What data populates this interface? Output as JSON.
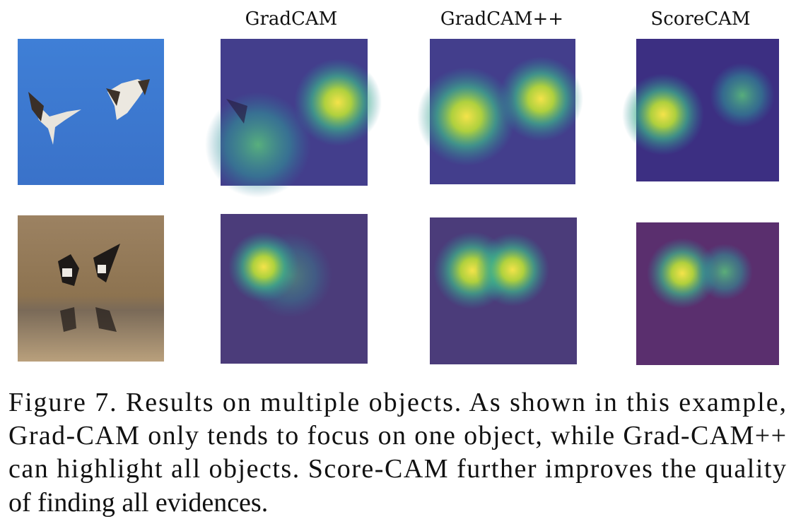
{
  "figure": {
    "columns": [
      "GradCAM",
      "GradCAM++",
      "ScoreCAM"
    ],
    "caption": [
      "Figure 7. Results on multiple objects.  As shown in this example,",
      "Grad-CAM only tends to focus on one object, while Grad-CAM++",
      "can highlight all objects.  Score-CAM further improves the quality",
      "of finding all evidences."
    ]
  }
}
